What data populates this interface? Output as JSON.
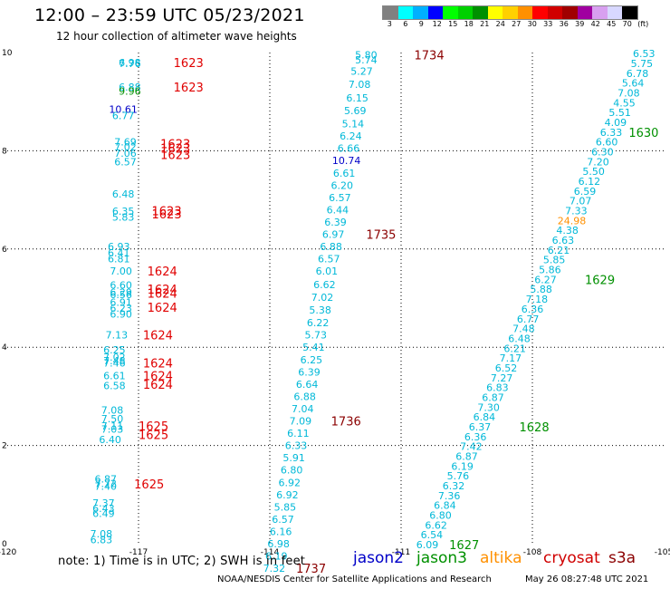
{
  "header": {
    "title": "12:00 – 23:59 UTC 05/23/2021",
    "subtitle": "12 hour collection of altimeter wave heights"
  },
  "legend": {
    "colors": [
      "#808080",
      "#00ffff",
      "#00b0ff",
      "#0000ff",
      "#00ff00",
      "#00d000",
      "#009000",
      "#ffff00",
      "#ffd000",
      "#ff9000",
      "#ff0000",
      "#d00000",
      "#a00000",
      "#a000a0",
      "#d8a0f0",
      "#d8d8ff",
      "#000000"
    ],
    "labels": [
      "3",
      "6",
      "9",
      "12",
      "15",
      "18",
      "21",
      "24",
      "27",
      "30",
      "33",
      "36",
      "39",
      "42",
      "45",
      "70",
      "(ft)"
    ]
  },
  "footer": {
    "note": "note:  1) Time is in UTC;  2) SWH is in feet",
    "satellites": [
      {
        "name": "jason2",
        "color": "#0000c8"
      },
      {
        "name": "jason3",
        "color": "#009000"
      },
      {
        "name": "altika",
        "color": "#ff9000"
      },
      {
        "name": "cryosat",
        "color": "#d00000"
      },
      {
        "name": "s3a",
        "color": "#8b0000"
      }
    ],
    "credit": "NOAA/NESDIS Center for Satellite Applications and Research",
    "timestamp": "May 26 08:27:48 UTC 2021"
  },
  "chart_data": {
    "type": "scatter",
    "xlim": [
      -120,
      -105
    ],
    "ylim": [
      0,
      10
    ],
    "x_ticks": [
      "-120",
      "-117",
      "-114",
      "-111",
      "-108",
      "-105"
    ],
    "y_ticks": [
      "0",
      "2",
      "4",
      "6",
      "8",
      "10"
    ],
    "grid": true,
    "colors": {
      "cyan": "#00b8d8",
      "blue": "#0000c8",
      "green": "#009000",
      "orange": "#ff9000",
      "red": "#e00000",
      "maroon": "#8b0000"
    },
    "points": [
      {
        "lon": -117.2,
        "lat": 9.8,
        "t": "6.98",
        "c": "cyan"
      },
      {
        "lon": -117.2,
        "lat": 9.78,
        "t": "7.76",
        "c": "cyan"
      },
      {
        "lon": -117.2,
        "lat": 9.3,
        "t": "6.88",
        "c": "cyan"
      },
      {
        "lon": -117.2,
        "lat": 9.22,
        "t": "9.96",
        "c": "green"
      },
      {
        "lon": -117.35,
        "lat": 8.85,
        "t": "10.61",
        "c": "blue"
      },
      {
        "lon": -117.35,
        "lat": 8.72,
        "t": "6.77",
        "c": "cyan"
      },
      {
        "lon": -117.3,
        "lat": 8.18,
        "t": "7.69",
        "c": "cyan"
      },
      {
        "lon": -117.3,
        "lat": 8.08,
        "t": "7.02",
        "c": "cyan"
      },
      {
        "lon": -117.3,
        "lat": 7.95,
        "t": "7.06",
        "c": "cyan"
      },
      {
        "lon": -117.3,
        "lat": 7.78,
        "t": "6.57",
        "c": "cyan"
      },
      {
        "lon": -117.35,
        "lat": 7.12,
        "t": "6.48",
        "c": "cyan"
      },
      {
        "lon": -117.35,
        "lat": 6.77,
        "t": "6.35",
        "c": "cyan"
      },
      {
        "lon": -117.35,
        "lat": 6.65,
        "t": "5.83",
        "c": "cyan"
      },
      {
        "lon": -117.45,
        "lat": 6.05,
        "t": "6.93",
        "c": "cyan"
      },
      {
        "lon": -117.45,
        "lat": 5.92,
        "t": "6.41",
        "c": "cyan"
      },
      {
        "lon": -117.45,
        "lat": 5.8,
        "t": "6.81",
        "c": "cyan"
      },
      {
        "lon": -117.4,
        "lat": 5.55,
        "t": "7.00",
        "c": "cyan"
      },
      {
        "lon": -117.4,
        "lat": 5.27,
        "t": "6.60",
        "c": "cyan"
      },
      {
        "lon": -117.4,
        "lat": 5.12,
        "t": "6.29",
        "c": "cyan"
      },
      {
        "lon": -117.4,
        "lat": 5.07,
        "t": "6.56",
        "c": "cyan"
      },
      {
        "lon": -117.4,
        "lat": 4.92,
        "t": "6.91",
        "c": "cyan"
      },
      {
        "lon": -117.4,
        "lat": 4.8,
        "t": "6.23",
        "c": "cyan"
      },
      {
        "lon": -117.4,
        "lat": 4.68,
        "t": "6.90",
        "c": "cyan"
      },
      {
        "lon": -117.5,
        "lat": 4.25,
        "t": "7.13",
        "c": "cyan"
      },
      {
        "lon": -117.55,
        "lat": 3.95,
        "t": "6.25",
        "c": "cyan"
      },
      {
        "lon": -117.55,
        "lat": 3.8,
        "t": "7.02",
        "c": "cyan"
      },
      {
        "lon": -117.55,
        "lat": 3.73,
        "t": "7.48",
        "c": "cyan"
      },
      {
        "lon": -117.55,
        "lat": 3.68,
        "t": "7.46",
        "c": "cyan"
      },
      {
        "lon": -117.55,
        "lat": 3.42,
        "t": "6.61",
        "c": "cyan"
      },
      {
        "lon": -117.55,
        "lat": 3.22,
        "t": "6.58",
        "c": "cyan"
      },
      {
        "lon": -117.6,
        "lat": 2.72,
        "t": "7.08",
        "c": "cyan"
      },
      {
        "lon": -117.6,
        "lat": 2.55,
        "t": "7.50",
        "c": "cyan"
      },
      {
        "lon": -117.6,
        "lat": 2.4,
        "t": "7.11",
        "c": "cyan"
      },
      {
        "lon": -117.6,
        "lat": 2.33,
        "t": "7.03",
        "c": "cyan"
      },
      {
        "lon": -117.65,
        "lat": 2.12,
        "t": "6.40",
        "c": "cyan"
      },
      {
        "lon": -117.75,
        "lat": 1.32,
        "t": "6.87",
        "c": "cyan"
      },
      {
        "lon": -117.75,
        "lat": 1.23,
        "t": "7.72",
        "c": "cyan"
      },
      {
        "lon": -117.75,
        "lat": 1.17,
        "t": "7.40",
        "c": "cyan"
      },
      {
        "lon": -117.8,
        "lat": 0.83,
        "t": "7.37",
        "c": "cyan"
      },
      {
        "lon": -117.8,
        "lat": 0.72,
        "t": "6.43",
        "c": "cyan"
      },
      {
        "lon": -117.8,
        "lat": 0.62,
        "t": "6.49",
        "c": "cyan"
      },
      {
        "lon": -117.85,
        "lat": 0.2,
        "t": "7.08",
        "c": "cyan"
      },
      {
        "lon": -117.85,
        "lat": 0.08,
        "t": "6.83",
        "c": "cyan"
      },
      {
        "lon": -111.8,
        "lat": 9.95,
        "t": "5.80",
        "c": "cyan"
      },
      {
        "lon": -111.8,
        "lat": 9.85,
        "t": "5.74",
        "c": "cyan"
      },
      {
        "lon": -111.9,
        "lat": 9.62,
        "t": "5.27",
        "c": "cyan"
      },
      {
        "lon": -111.95,
        "lat": 9.35,
        "t": "7.08",
        "c": "cyan"
      },
      {
        "lon": -112.0,
        "lat": 9.08,
        "t": "6.15",
        "c": "cyan"
      },
      {
        "lon": -112.05,
        "lat": 8.82,
        "t": "5.69",
        "c": "cyan"
      },
      {
        "lon": -112.1,
        "lat": 8.55,
        "t": "5.14",
        "c": "cyan"
      },
      {
        "lon": -112.15,
        "lat": 8.3,
        "t": "6.24",
        "c": "cyan"
      },
      {
        "lon": -112.2,
        "lat": 8.05,
        "t": "6.66",
        "c": "cyan"
      },
      {
        "lon": -112.25,
        "lat": 7.8,
        "t": "10.74",
        "c": "blue"
      },
      {
        "lon": -112.3,
        "lat": 7.55,
        "t": "6.61",
        "c": "cyan"
      },
      {
        "lon": -112.35,
        "lat": 7.3,
        "t": "6.20",
        "c": "cyan"
      },
      {
        "lon": -112.4,
        "lat": 7.05,
        "t": "6.57",
        "c": "cyan"
      },
      {
        "lon": -112.45,
        "lat": 6.8,
        "t": "6.44",
        "c": "cyan"
      },
      {
        "lon": -112.5,
        "lat": 6.55,
        "t": "6.39",
        "c": "cyan"
      },
      {
        "lon": -112.55,
        "lat": 6.3,
        "t": "6.97",
        "c": "cyan"
      },
      {
        "lon": -112.6,
        "lat": 6.05,
        "t": "6.88",
        "c": "cyan"
      },
      {
        "lon": -112.65,
        "lat": 5.8,
        "t": "6.57",
        "c": "cyan"
      },
      {
        "lon": -112.7,
        "lat": 5.55,
        "t": "6.01",
        "c": "cyan"
      },
      {
        "lon": -112.75,
        "lat": 5.28,
        "t": "6.62",
        "c": "cyan"
      },
      {
        "lon": -112.8,
        "lat": 5.02,
        "t": "7.02",
        "c": "cyan"
      },
      {
        "lon": -112.85,
        "lat": 4.76,
        "t": "5.38",
        "c": "cyan"
      },
      {
        "lon": -112.9,
        "lat": 4.5,
        "t": "6.22",
        "c": "cyan"
      },
      {
        "lon": -112.95,
        "lat": 4.25,
        "t": "5.73",
        "c": "cyan"
      },
      {
        "lon": -113.0,
        "lat": 4.0,
        "t": "5.41",
        "c": "cyan"
      },
      {
        "lon": -113.05,
        "lat": 3.75,
        "t": "6.25",
        "c": "cyan"
      },
      {
        "lon": -113.1,
        "lat": 3.5,
        "t": "6.39",
        "c": "cyan"
      },
      {
        "lon": -113.15,
        "lat": 3.25,
        "t": "6.64",
        "c": "cyan"
      },
      {
        "lon": -113.2,
        "lat": 3.0,
        "t": "6.88",
        "c": "cyan"
      },
      {
        "lon": -113.25,
        "lat": 2.75,
        "t": "7.04",
        "c": "cyan"
      },
      {
        "lon": -113.3,
        "lat": 2.5,
        "t": "7.09",
        "c": "cyan"
      },
      {
        "lon": -113.35,
        "lat": 2.25,
        "t": "6.11",
        "c": "cyan"
      },
      {
        "lon": -113.4,
        "lat": 2.0,
        "t": "6.33",
        "c": "cyan"
      },
      {
        "lon": -113.45,
        "lat": 1.75,
        "t": "5.91",
        "c": "cyan"
      },
      {
        "lon": -113.5,
        "lat": 1.5,
        "t": "6.80",
        "c": "cyan"
      },
      {
        "lon": -113.55,
        "lat": 1.25,
        "t": "6.92",
        "c": "cyan"
      },
      {
        "lon": -113.6,
        "lat": 1.0,
        "t": "6.92",
        "c": "cyan"
      },
      {
        "lon": -113.65,
        "lat": 0.75,
        "t": "5.85",
        "c": "cyan"
      },
      {
        "lon": -113.7,
        "lat": 0.5,
        "t": "6.57",
        "c": "cyan"
      },
      {
        "lon": -113.75,
        "lat": 0.25,
        "t": "6.16",
        "c": "cyan"
      },
      {
        "lon": -113.8,
        "lat": 0.0,
        "t": "6.98",
        "c": "cyan"
      },
      {
        "lon": -113.85,
        "lat": -0.25,
        "t": "6.19",
        "c": "cyan"
      },
      {
        "lon": -113.9,
        "lat": -0.5,
        "t": "7.32",
        "c": "cyan"
      },
      {
        "lon": -105.45,
        "lat": 9.98,
        "t": "6.53",
        "c": "cyan"
      },
      {
        "lon": -105.5,
        "lat": 9.78,
        "t": "5.75",
        "c": "cyan"
      },
      {
        "lon": -105.6,
        "lat": 9.58,
        "t": "6.78",
        "c": "cyan"
      },
      {
        "lon": -105.7,
        "lat": 9.38,
        "t": "5.64",
        "c": "cyan"
      },
      {
        "lon": -105.8,
        "lat": 9.18,
        "t": "7.08",
        "c": "cyan"
      },
      {
        "lon": -105.9,
        "lat": 8.98,
        "t": "4.55",
        "c": "cyan"
      },
      {
        "lon": -106.0,
        "lat": 8.78,
        "t": "5.51",
        "c": "cyan"
      },
      {
        "lon": -106.1,
        "lat": 8.58,
        "t": "4.09",
        "c": "cyan"
      },
      {
        "lon": -106.2,
        "lat": 8.38,
        "t": "6.33",
        "c": "cyan"
      },
      {
        "lon": -106.3,
        "lat": 8.18,
        "t": "6.60",
        "c": "cyan"
      },
      {
        "lon": -106.4,
        "lat": 7.98,
        "t": "6.30",
        "c": "cyan"
      },
      {
        "lon": -106.5,
        "lat": 7.78,
        "t": "7.20",
        "c": "cyan"
      },
      {
        "lon": -106.6,
        "lat": 7.58,
        "t": "5.50",
        "c": "cyan"
      },
      {
        "lon": -106.7,
        "lat": 7.38,
        "t": "6.12",
        "c": "cyan"
      },
      {
        "lon": -106.8,
        "lat": 7.18,
        "t": "6.59",
        "c": "cyan"
      },
      {
        "lon": -106.9,
        "lat": 6.98,
        "t": "7.07",
        "c": "cyan"
      },
      {
        "lon": -107.0,
        "lat": 6.78,
        "t": "7.33",
        "c": "cyan"
      },
      {
        "lon": -107.1,
        "lat": 6.58,
        "t": "24.98",
        "c": "orange"
      },
      {
        "lon": -107.2,
        "lat": 6.38,
        "t": "4.38",
        "c": "cyan"
      },
      {
        "lon": -107.3,
        "lat": 6.18,
        "t": "6.63",
        "c": "cyan"
      },
      {
        "lon": -107.4,
        "lat": 5.98,
        "t": "6.21",
        "c": "cyan"
      },
      {
        "lon": -107.5,
        "lat": 5.78,
        "t": "5.85",
        "c": "cyan"
      },
      {
        "lon": -107.6,
        "lat": 5.58,
        "t": "5.86",
        "c": "cyan"
      },
      {
        "lon": -107.7,
        "lat": 5.38,
        "t": "6.27",
        "c": "cyan"
      },
      {
        "lon": -107.8,
        "lat": 5.18,
        "t": "5.88",
        "c": "cyan"
      },
      {
        "lon": -107.9,
        "lat": 4.98,
        "t": "7.18",
        "c": "cyan"
      },
      {
        "lon": -108.0,
        "lat": 4.78,
        "t": "6.36",
        "c": "cyan"
      },
      {
        "lon": -108.1,
        "lat": 4.58,
        "t": "6.77",
        "c": "cyan"
      },
      {
        "lon": -108.2,
        "lat": 4.38,
        "t": "7.48",
        "c": "cyan"
      },
      {
        "lon": -108.3,
        "lat": 4.18,
        "t": "6.48",
        "c": "cyan"
      },
      {
        "lon": -108.4,
        "lat": 3.98,
        "t": "6.21",
        "c": "cyan"
      },
      {
        "lon": -108.5,
        "lat": 3.78,
        "t": "7.17",
        "c": "cyan"
      },
      {
        "lon": -108.6,
        "lat": 3.58,
        "t": "6.52",
        "c": "cyan"
      },
      {
        "lon": -108.7,
        "lat": 3.38,
        "t": "7.27",
        "c": "cyan"
      },
      {
        "lon": -108.8,
        "lat": 3.18,
        "t": "6.83",
        "c": "cyan"
      },
      {
        "lon": -108.9,
        "lat": 2.98,
        "t": "6.87",
        "c": "cyan"
      },
      {
        "lon": -109.0,
        "lat": 2.78,
        "t": "7.30",
        "c": "cyan"
      },
      {
        "lon": -109.1,
        "lat": 2.58,
        "t": "6.84",
        "c": "cyan"
      },
      {
        "lon": -109.2,
        "lat": 2.38,
        "t": "6.37",
        "c": "cyan"
      },
      {
        "lon": -109.3,
        "lat": 2.18,
        "t": "6.36",
        "c": "cyan"
      },
      {
        "lon": -109.4,
        "lat": 1.98,
        "t": "7.42",
        "c": "cyan"
      },
      {
        "lon": -109.5,
        "lat": 1.78,
        "t": "6.87",
        "c": "cyan"
      },
      {
        "lon": -109.6,
        "lat": 1.58,
        "t": "6.19",
        "c": "cyan"
      },
      {
        "lon": -109.7,
        "lat": 1.38,
        "t": "5.76",
        "c": "cyan"
      },
      {
        "lon": -109.8,
        "lat": 1.18,
        "t": "6.32",
        "c": "cyan"
      },
      {
        "lon": -109.9,
        "lat": 0.98,
        "t": "7.36",
        "c": "cyan"
      },
      {
        "lon": -110.0,
        "lat": 0.78,
        "t": "6.84",
        "c": "cyan"
      },
      {
        "lon": -110.1,
        "lat": 0.58,
        "t": "6.80",
        "c": "cyan"
      },
      {
        "lon": -110.2,
        "lat": 0.38,
        "t": "6.62",
        "c": "cyan"
      },
      {
        "lon": -110.3,
        "lat": 0.18,
        "t": "6.54",
        "c": "cyan"
      },
      {
        "lon": -110.4,
        "lat": -0.02,
        "t": "6.09",
        "c": "cyan"
      }
    ],
    "time_labels": [
      {
        "lon": -116.2,
        "lat": 9.8,
        "t": "1623",
        "c": "red"
      },
      {
        "lon": -116.2,
        "lat": 9.3,
        "t": "1623",
        "c": "red"
      },
      {
        "lon": -116.5,
        "lat": 8.15,
        "t": "1623",
        "c": "red"
      },
      {
        "lon": -116.5,
        "lat": 8.05,
        "t": "1623",
        "c": "red"
      },
      {
        "lon": -116.5,
        "lat": 7.92,
        "t": "1623",
        "c": "red"
      },
      {
        "lon": -116.7,
        "lat": 6.78,
        "t": "1623",
        "c": "red"
      },
      {
        "lon": -116.7,
        "lat": 6.72,
        "t": "1623",
        "c": "red"
      },
      {
        "lon": -116.8,
        "lat": 5.55,
        "t": "1624",
        "c": "red"
      },
      {
        "lon": -116.8,
        "lat": 5.18,
        "t": "1624",
        "c": "red"
      },
      {
        "lon": -116.8,
        "lat": 5.1,
        "t": "1624",
        "c": "red"
      },
      {
        "lon": -116.8,
        "lat": 4.82,
        "t": "1624",
        "c": "red"
      },
      {
        "lon": -116.9,
        "lat": 4.25,
        "t": "1624",
        "c": "red"
      },
      {
        "lon": -116.9,
        "lat": 3.68,
        "t": "1624",
        "c": "red"
      },
      {
        "lon": -116.9,
        "lat": 3.42,
        "t": "1624",
        "c": "red"
      },
      {
        "lon": -116.9,
        "lat": 3.25,
        "t": "1624",
        "c": "red"
      },
      {
        "lon": -117.0,
        "lat": 2.4,
        "t": "1625",
        "c": "red"
      },
      {
        "lon": -117.0,
        "lat": 2.22,
        "t": "1625",
        "c": "red"
      },
      {
        "lon": -117.1,
        "lat": 1.22,
        "t": "1625",
        "c": "red"
      },
      {
        "lon": -110.7,
        "lat": 9.95,
        "t": "1734",
        "c": "maroon"
      },
      {
        "lon": -111.8,
        "lat": 6.3,
        "t": "1735",
        "c": "maroon"
      },
      {
        "lon": -112.6,
        "lat": 2.5,
        "t": "1736",
        "c": "maroon"
      },
      {
        "lon": -113.4,
        "lat": -0.5,
        "t": "1737",
        "c": "maroon"
      },
      {
        "lon": -105.8,
        "lat": 8.38,
        "t": "1630",
        "c": "green"
      },
      {
        "lon": -106.8,
        "lat": 5.38,
        "t": "1629",
        "c": "green"
      },
      {
        "lon": -108.3,
        "lat": 2.38,
        "t": "1628",
        "c": "green"
      },
      {
        "lon": -109.9,
        "lat": -0.02,
        "t": "1627",
        "c": "green"
      }
    ]
  }
}
